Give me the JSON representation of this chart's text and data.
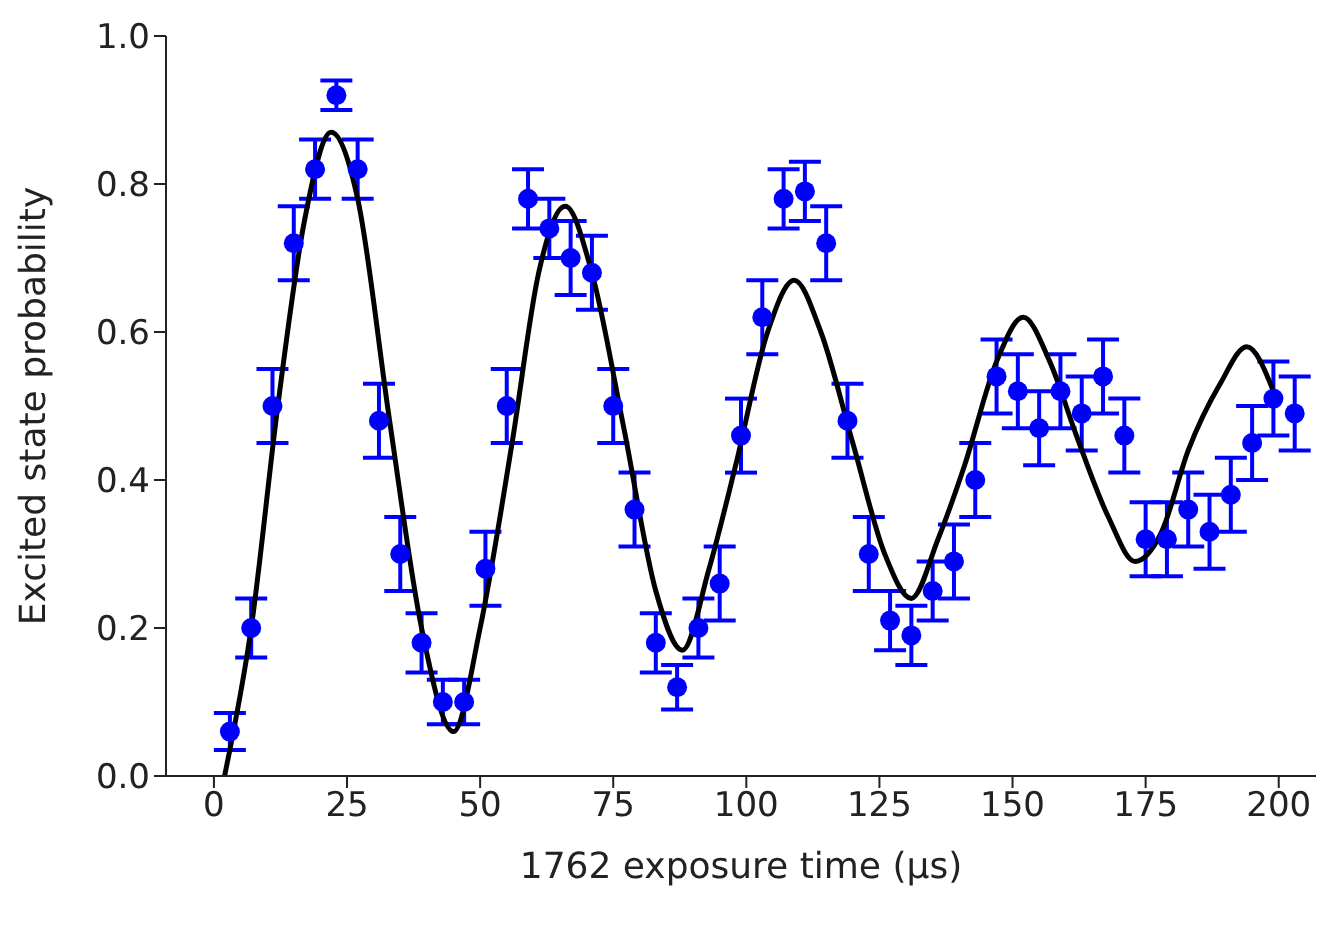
{
  "chart_data": {
    "type": "scatter",
    "xlabel": "1762 exposure time (μs)",
    "ylabel": "Excited state probability",
    "xlim": [
      -9,
      207
    ],
    "xticks": [
      0,
      25,
      50,
      75,
      100,
      125,
      150,
      175,
      200
    ],
    "ylim": [
      0,
      1
    ],
    "yticks": [
      {
        "value": 0,
        "label": "0.0"
      },
      0.2,
      0.4,
      0.6,
      0.8,
      {
        "value": 1,
        "label": "1.0"
      }
    ],
    "grid": false,
    "legend": false,
    "marker": "circle",
    "series": [
      {
        "color": "#0000ff",
        "x": [
          3,
          7,
          11,
          15,
          19,
          23,
          27,
          31,
          35,
          39,
          43,
          47,
          51,
          55,
          59,
          63,
          67,
          71,
          75,
          79,
          83,
          87,
          91,
          95,
          99,
          103,
          107,
          111,
          115,
          119,
          123,
          127,
          131,
          135,
          139,
          143,
          147,
          151,
          155,
          159,
          163,
          167,
          171,
          175,
          179,
          183,
          187,
          191,
          195,
          199,
          203
        ],
        "values": [
          0.06,
          0.2,
          0.5,
          0.72,
          0.82,
          0.92,
          0.82,
          0.48,
          0.3,
          0.18,
          0.1,
          0.1,
          0.28,
          0.5,
          0.78,
          0.74,
          0.7,
          0.68,
          0.5,
          0.36,
          0.18,
          0.12,
          0.2,
          0.26,
          0.46,
          0.62,
          0.78,
          0.79,
          0.72,
          0.48,
          0.3,
          0.21,
          0.19,
          0.25,
          0.29,
          0.4,
          0.54,
          0.52,
          0.47,
          0.52,
          0.49,
          0.54,
          0.46,
          0.32,
          0.32,
          0.36,
          0.33,
          0.38,
          0.45,
          0.51,
          0.49
        ],
        "errors": [
          0.025,
          0.04,
          0.05,
          0.05,
          0.04,
          0.02,
          0.04,
          0.05,
          0.05,
          0.04,
          0.03,
          0.03,
          0.05,
          0.05,
          0.04,
          0.04,
          0.05,
          0.05,
          0.05,
          0.05,
          0.04,
          0.03,
          0.04,
          0.05,
          0.05,
          0.05,
          0.04,
          0.04,
          0.05,
          0.05,
          0.05,
          0.04,
          0.04,
          0.04,
          0.05,
          0.05,
          0.05,
          0.05,
          0.05,
          0.05,
          0.05,
          0.05,
          0.05,
          0.05,
          0.05,
          0.05,
          0.05,
          0.05,
          0.05,
          0.05,
          0.05
        ]
      },
      {
        "type": "line",
        "color": "#000000",
        "line_style": "solid",
        "marker": "none",
        "x": [
          2,
          7,
          12,
          17,
          22,
          27,
          33,
          39,
          45,
          50,
          56,
          61,
          66,
          71,
          77,
          83,
          88,
          93,
          98,
          104,
          109,
          114,
          120,
          126,
          131,
          136,
          141,
          147,
          152,
          157,
          162,
          168,
          173,
          178,
          183,
          189,
          194,
          199
        ],
        "values": [
          0.0,
          0.2,
          0.5,
          0.75,
          0.87,
          0.78,
          0.48,
          0.2,
          0.06,
          0.2,
          0.45,
          0.68,
          0.77,
          0.68,
          0.47,
          0.25,
          0.17,
          0.28,
          0.42,
          0.6,
          0.67,
          0.6,
          0.45,
          0.3,
          0.24,
          0.32,
          0.42,
          0.56,
          0.62,
          0.56,
          0.46,
          0.35,
          0.29,
          0.33,
          0.44,
          0.53,
          0.58,
          0.52
        ]
      }
    ]
  }
}
